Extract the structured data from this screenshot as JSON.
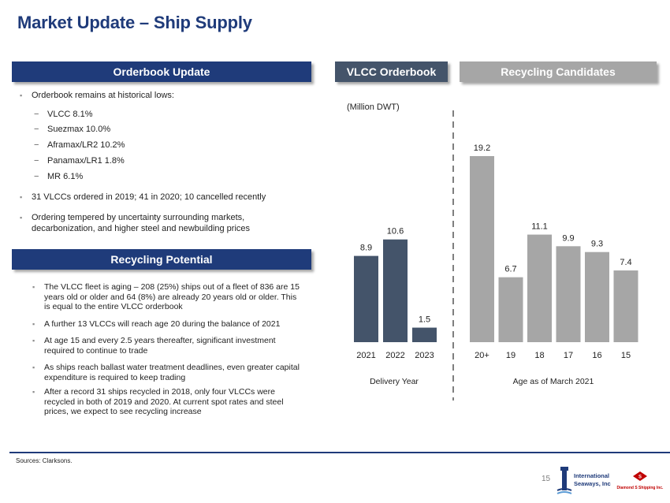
{
  "title": "Market Update – Ship Supply",
  "headers": {
    "orderbook_update": "Orderbook Update",
    "vlcc_orderbook": "VLCC Orderbook",
    "recycling_candidates": "Recycling Candidates",
    "recycling_potential": "Recycling Potential"
  },
  "orderbook": {
    "lead": "Orderbook remains at historical lows:",
    "items": [
      "VLCC 8.1%",
      "Suezmax 10.0%",
      "Aframax/LR2 10.2%",
      "Panamax/LR1 1.8%",
      "MR 6.1%"
    ],
    "bullet2": "31 VLCCs ordered in 2019; 41 in 2020; 10 cancelled recently",
    "bullet3": "Ordering tempered by uncertainty surrounding markets, decarbonization, and higher steel and newbuilding prices"
  },
  "recycling": [
    "The VLCC fleet is aging – 208 (25%) ships out of a fleet of 836 are 15 years old or older and 64 (8%) are already 20 years old or older. This is equal to the entire VLCC orderbook",
    "A further 13 VLCCs will reach age 20 during the balance of 2021",
    "At age 15 and every 2.5 years thereafter, significant investment required to continue to trade",
    "As ships reach ballast water treatment deadlines, even greater capital expenditure is required to keep trading",
    "After a record 31 ships recycled in 2018, only four VLCCs were recycled in both of 2019 and 2020.  At current spot rates and steel prices, we expect to see recycling increase"
  ],
  "chart_data": [
    {
      "type": "bar",
      "title": "VLCC Orderbook",
      "unit_label": "(Million DWT)",
      "xlabel": "Delivery Year",
      "categories": [
        "2021",
        "2022",
        "2023"
      ],
      "values": [
        8.9,
        10.6,
        1.5
      ],
      "data_labels": [
        "8.9",
        "10.6",
        "1.5"
      ],
      "color": "#44546a",
      "ylim": [
        0,
        20
      ]
    },
    {
      "type": "bar",
      "title": "Recycling Candidates",
      "xlabel": "Age as of March 2021",
      "categories": [
        "20+",
        "19",
        "18",
        "17",
        "16",
        "15"
      ],
      "values": [
        19.2,
        6.7,
        11.1,
        9.9,
        9.3,
        7.4
      ],
      "data_labels": [
        "19.2",
        "6.7",
        "11.1",
        "9.9",
        "9.3",
        "7.4"
      ],
      "color": "#a6a6a6",
      "ylim": [
        0,
        20
      ]
    }
  ],
  "footer": {
    "sources": "Sources: Clarksons.",
    "page": "15",
    "logo1_text": "International Seaways, Inc.",
    "logo2_text": "Diamond S Shipping Inc."
  },
  "colors": {
    "navy": "#1f3b7a",
    "slate": "#44546a",
    "gray": "#a6a6a6",
    "red": "#c00000"
  }
}
